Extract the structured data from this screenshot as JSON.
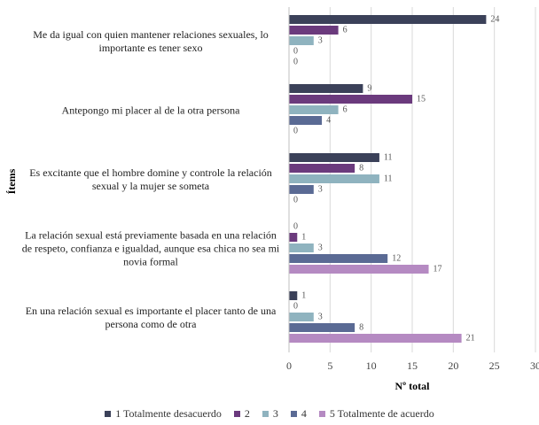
{
  "chart_data": {
    "type": "hbar",
    "xlabel": "Nº total",
    "ylabel": "Ítems",
    "categories": [
      "Me da igual con quien mantener relaciones sexuales, lo importante es tener sexo",
      "Antepongo mi placer al de la otra persona",
      "Es excitante que el hombre domine y controle la relación sexual y la mujer se someta",
      "La relación sexual está previamente basada en una relación de respeto, confianza e igualdad, aunque esa chica no sea mi novia formal",
      "En una relación sexual es importante el placer tanto de una persona como de otra"
    ],
    "series": [
      {
        "name": "1 Totalmente desacuerdo",
        "color": "#3b4159",
        "values": [
          24,
          9,
          11,
          0,
          1
        ]
      },
      {
        "name": "2",
        "color": "#6b3a7d",
        "values": [
          6,
          15,
          8,
          1,
          0
        ]
      },
      {
        "name": "3",
        "color": "#8fb3bf",
        "values": [
          3,
          6,
          11,
          3,
          3
        ]
      },
      {
        "name": "4",
        "color": "#5a6a94",
        "values": [
          0,
          4,
          3,
          12,
          8
        ]
      },
      {
        "name": "5 Totalmente de acuerdo",
        "color": "#b58ac2",
        "values": [
          0,
          0,
          0,
          17,
          21
        ]
      }
    ],
    "xlim": [
      0,
      30
    ],
    "xticks": [
      0,
      5,
      10,
      15,
      20,
      25,
      30
    ],
    "grid": true
  }
}
